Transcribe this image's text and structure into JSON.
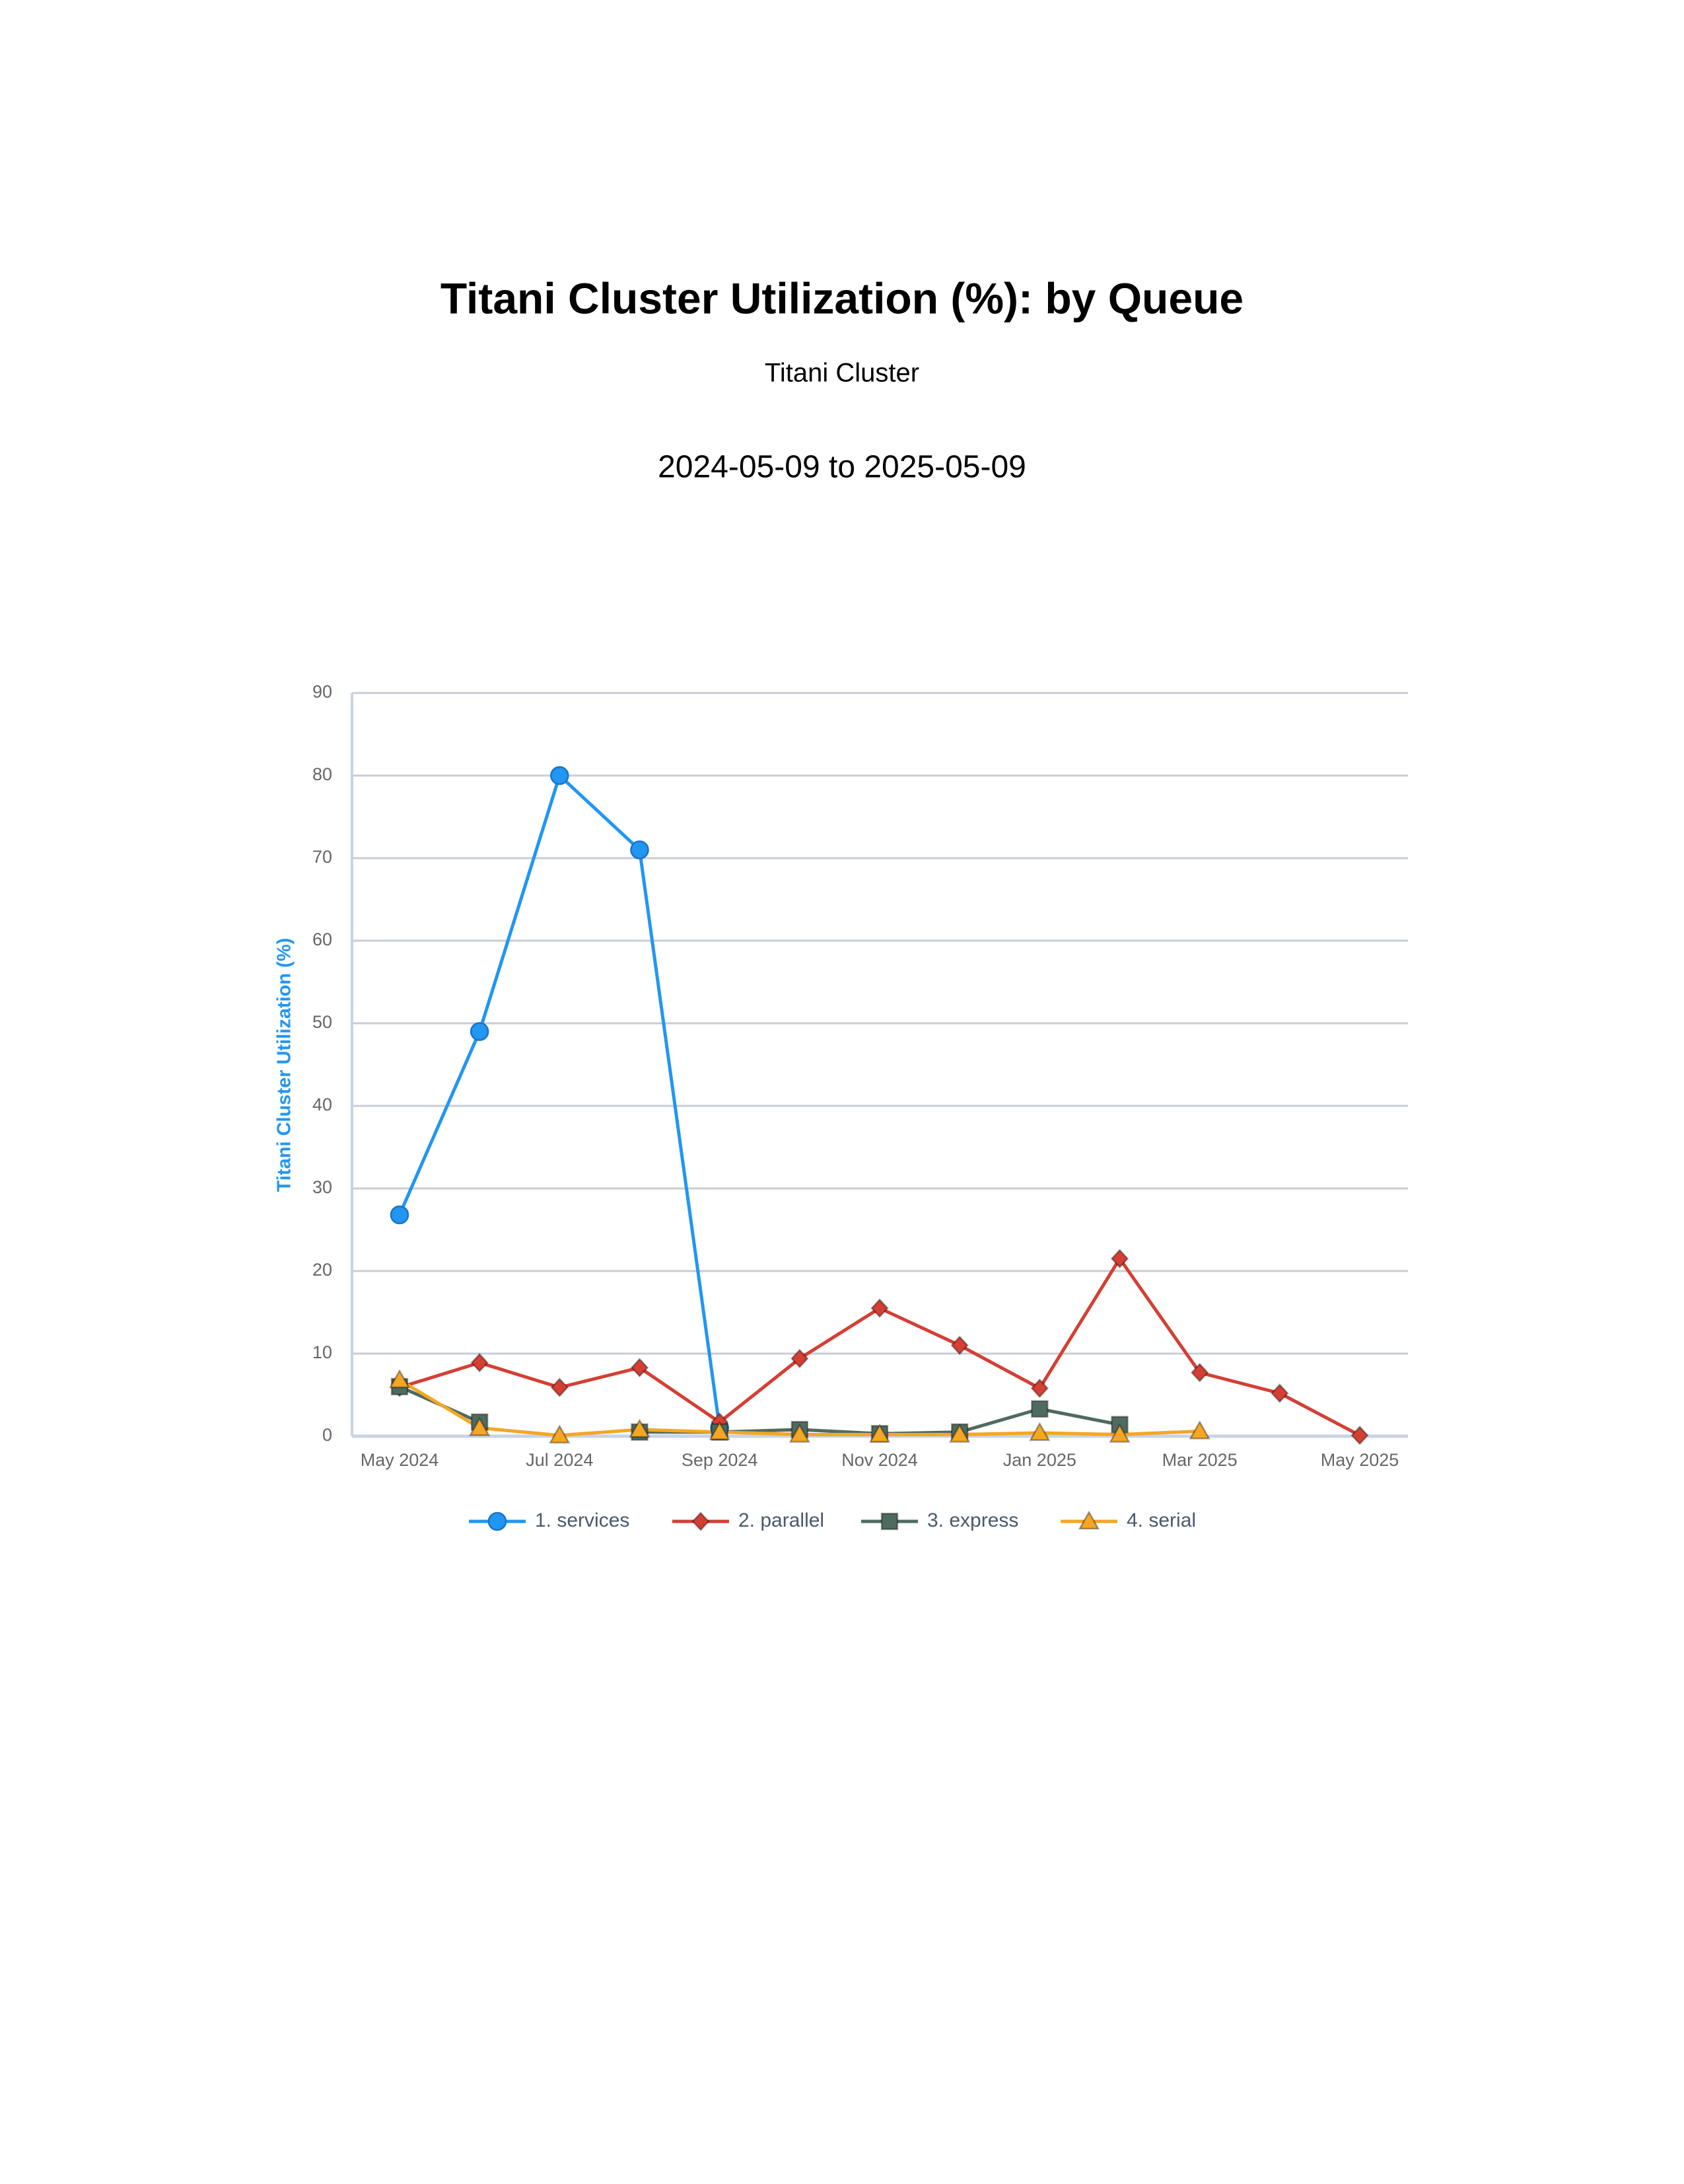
{
  "chart_data": {
    "type": "line",
    "title": "Titani Cluster Utilization (%): by Queue",
    "subtitle": "Titani Cluster",
    "period": "2024-05-09 to 2025-05-09",
    "y_label": "Titani Cluster Utilization (%)",
    "categories": [
      "May 2024",
      null,
      "Jul 2024",
      null,
      "Sep 2024",
      null,
      "Nov 2024",
      null,
      "Jan 2025",
      null,
      "Mar 2025",
      null,
      "May 2025"
    ],
    "ylim": [
      0,
      90
    ],
    "yticks": [
      0,
      10,
      20,
      30,
      40,
      50,
      60,
      70,
      80,
      90
    ],
    "grid": true,
    "legend": "bottom",
    "series": [
      {
        "name": "1. services",
        "color": "#2196f3",
        "marker": "circle",
        "values": [
          26.8,
          49,
          80,
          71,
          1,
          null,
          null,
          null,
          null,
          null,
          null,
          null,
          null
        ]
      },
      {
        "name": "2. parallel",
        "color": "#d43f34",
        "marker": "diamond",
        "values": [
          5.9,
          8.9,
          5.9,
          8.3,
          1.7,
          9.4,
          15.5,
          11,
          5.8,
          21.5,
          7.7,
          5.2,
          0.1
        ]
      },
      {
        "name": "3. express",
        "color": "#4f6b5f",
        "marker": "square",
        "values": [
          6,
          1.7,
          null,
          0.5,
          0.5,
          0.8,
          0.3,
          0.5,
          3.3,
          1.4,
          null,
          null,
          null
        ]
      },
      {
        "name": "4. serial",
        "color": "#f5a623",
        "marker": "triangle",
        "values": [
          6.8,
          1,
          0.1,
          0.8,
          0.5,
          0.2,
          0.2,
          0.2,
          0.4,
          0.2,
          0.6,
          null,
          null
        ]
      }
    ]
  }
}
